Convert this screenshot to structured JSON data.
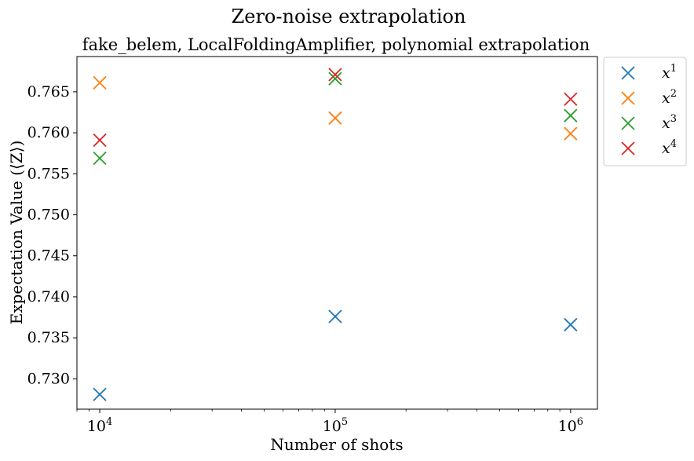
{
  "chart_data": {
    "type": "scatter",
    "title": "Zero-noise extrapolation",
    "subtitle": "fake_belem, LocalFoldingAmplifier, polynomial extrapolation",
    "xlabel": "Number of shots",
    "ylabel": "Expectation Value (⟨Z⟩)",
    "xscale": "log",
    "xlim": [
      8000,
      1300000
    ],
    "ylim": [
      0.7263,
      0.7693
    ],
    "x": [
      10000,
      100000,
      1000000
    ],
    "xtick_labels": [
      {
        "base": "10",
        "exp": "4"
      },
      {
        "base": "10",
        "exp": "5"
      },
      {
        "base": "10",
        "exp": "6"
      }
    ],
    "yticks": [
      "0.730",
      "0.735",
      "0.740",
      "0.745",
      "0.750",
      "0.755",
      "0.760",
      "0.765"
    ],
    "grid": false,
    "legend_position": "outside-right-top",
    "marker": "x",
    "series": [
      {
        "name": "x",
        "sup": "1",
        "color": "#1f77b4",
        "values": [
          0.7281,
          0.7376,
          0.7366
        ]
      },
      {
        "name": "x",
        "sup": "2",
        "color": "#ff7f0e",
        "values": [
          0.7661,
          0.7618,
          0.7599
        ]
      },
      {
        "name": "x",
        "sup": "3",
        "color": "#2ca02c",
        "values": [
          0.7569,
          0.7666,
          0.7621
        ]
      },
      {
        "name": "x",
        "sup": "4",
        "color": "#d62728",
        "values": [
          0.7591,
          0.7671,
          0.7641
        ]
      }
    ]
  }
}
